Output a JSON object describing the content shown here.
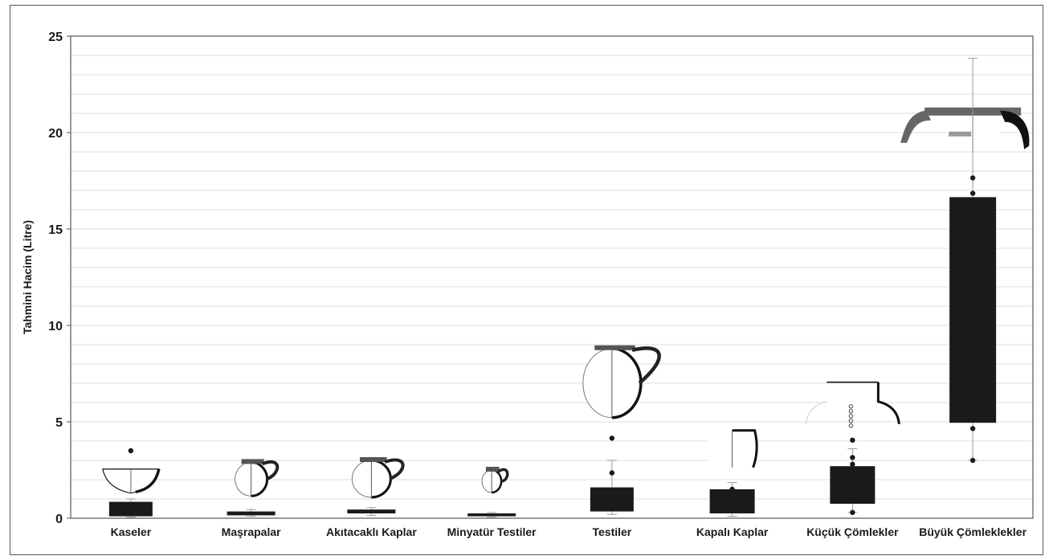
{
  "chart_data": {
    "type": "box",
    "title": "",
    "xlabel": "",
    "ylabel": "Tahmini Hacim (Litre)",
    "ylim": [
      0,
      25
    ],
    "yticks": [
      0,
      5,
      10,
      15,
      20,
      25
    ],
    "grid": true,
    "categories": [
      "Kaseler",
      "Maşrapalar",
      "Akıtacaklı Kaplar",
      "Minyatür Testiler",
      "Testiler",
      "Kapalı Kaplar",
      "Küçük Çömlekler",
      "Büyük Çömleklekler"
    ],
    "boxes": [
      {
        "category": "Kaseler",
        "whisker_low": 0.05,
        "q1": 0.1,
        "q3": 0.85,
        "whisker_high": 1.0,
        "outliers": [
          3.5
        ]
      },
      {
        "category": "Maşrapalar",
        "whisker_low": 0.1,
        "q1": 0.15,
        "q3": 0.35,
        "whisker_high": 0.45,
        "outliers": []
      },
      {
        "category": "Akıtacaklı Kaplar",
        "whisker_low": 0.15,
        "q1": 0.25,
        "q3": 0.45,
        "whisker_high": 0.55,
        "outliers": []
      },
      {
        "category": "Minyatür Testiler",
        "whisker_low": 0.05,
        "q1": 0.1,
        "q3": 0.25,
        "whisker_high": 0.3,
        "outliers": []
      },
      {
        "category": "Testiler",
        "whisker_low": 0.2,
        "q1": 0.35,
        "q3": 1.6,
        "whisker_high": 3.0,
        "outliers": [
          2.35,
          4.15
        ]
      },
      {
        "category": "Kapalı Kaplar",
        "whisker_low": 0.1,
        "q1": 0.25,
        "q3": 1.5,
        "whisker_high": 1.85,
        "outliers": [
          1.5
        ]
      },
      {
        "category": "Küçük Çömlekler",
        "whisker_low": 0.3,
        "q1": 0.75,
        "q3": 2.7,
        "whisker_high": 3.6,
        "outliers": [
          0.3,
          2.8,
          3.15,
          4.05
        ]
      },
      {
        "category": "Büyük Çömleklekler",
        "whisker_low": 3.0,
        "q1": 4.95,
        "q3": 16.65,
        "whisker_high": 23.85,
        "outliers": [
          3.0,
          4.65,
          16.85,
          17.65
        ]
      }
    ],
    "colors": {
      "box": "#1a1a1a",
      "grid": "#dcdcdc",
      "axis": "#555555",
      "vessel_fill": "#666666"
    }
  }
}
